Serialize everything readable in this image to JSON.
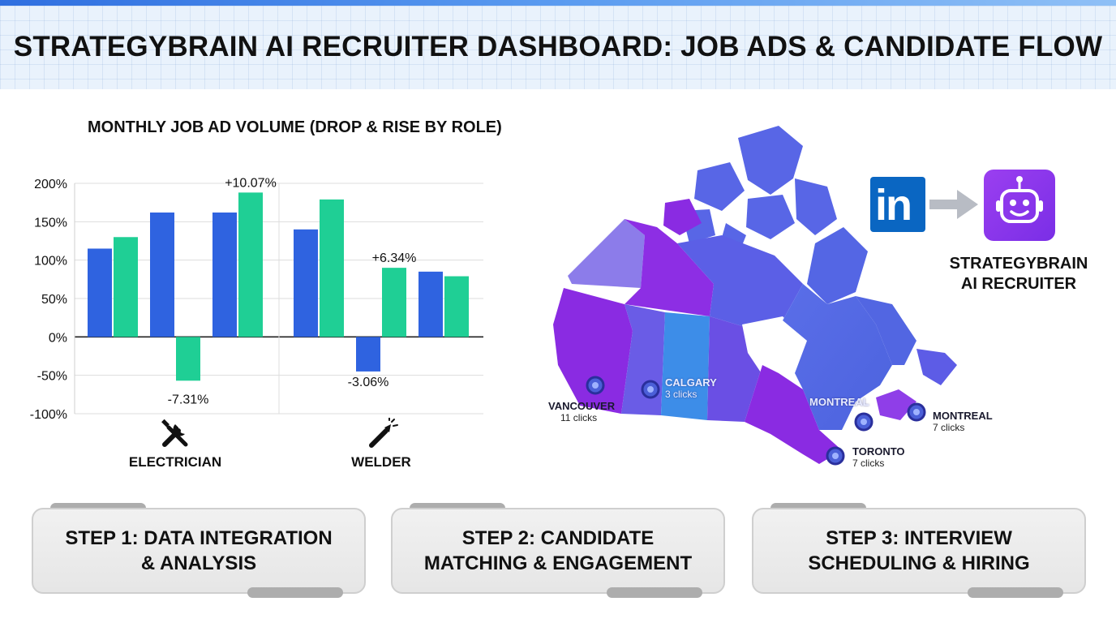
{
  "header": {
    "title": "STRATEGYBRAIN AI RECRUITER DASHBOARD: JOB ADS & CANDIDATE FLOW"
  },
  "chart_data": {
    "type": "bar",
    "title": "MONTHLY JOB AD VOLUME (DROP & RISE BY ROLE)",
    "ylim": [
      -100,
      200
    ],
    "yticks": [
      "200%",
      "150%",
      "100%",
      "50%",
      "0%",
      "-50%",
      "-100%"
    ],
    "groups": [
      {
        "role": "ELECTRICIAN",
        "icon": "wrench-screwdriver-icon",
        "bars": [
          {
            "value": 115,
            "color": "#2f63e0"
          },
          {
            "value": 130,
            "color": "#1fcf95"
          },
          {
            "value": 162,
            "color": "#2f63e0"
          },
          {
            "value": -57,
            "color": "#1fcf95",
            "label": "-7.31%"
          },
          {
            "value": 162,
            "color": "#2f63e0"
          },
          {
            "value": 188,
            "color": "#1fcf95",
            "label": "+10.07%"
          }
        ]
      },
      {
        "role": "WELDER",
        "icon": "welding-torch-icon",
        "bars": [
          {
            "value": 140,
            "color": "#2f63e0"
          },
          {
            "value": 179,
            "color": "#1fcf95"
          },
          {
            "value": -45,
            "color": "#2f63e0",
            "label": "-3.06%"
          },
          {
            "value": 90,
            "color": "#1fcf95",
            "label": "+6.34%"
          },
          {
            "value": 85,
            "color": "#2f63e0"
          },
          {
            "value": 79,
            "color": "#1fcf95"
          }
        ]
      }
    ],
    "grid": true
  },
  "map": {
    "cities": [
      {
        "name": "VANCOUVER",
        "clicks": "11 clicks"
      },
      {
        "name": "CALGARY",
        "clicks": "3 clicks"
      },
      {
        "name": "MONTREAL",
        "clicks": ""
      },
      {
        "name": "MONTREAL",
        "clicks": "7 clicks"
      },
      {
        "name": "TORONTO",
        "clicks": "7 clicks"
      }
    ]
  },
  "integration": {
    "source_logo_text": "in",
    "brand_line1": "STRATEGYBRAIN",
    "brand_line2": "AI RECRUITER"
  },
  "steps": [
    {
      "line1": "STEP 1: DATA INTEGRATION",
      "line2": "& ANALYSIS"
    },
    {
      "line1": "STEP 2: CANDIDATE",
      "line2": "MATCHING & ENGAGEMENT"
    },
    {
      "line1": "STEP 3: INTERVIEW",
      "line2": "SCHEDULING & HIRING"
    }
  ],
  "colors": {
    "bar_blue": "#2f63e0",
    "bar_green": "#1fcf95",
    "map_purple": "#8a2be2",
    "map_blue": "#4f6fe0",
    "linkedin": "#0a66c2",
    "bot": "#8a35ec"
  }
}
